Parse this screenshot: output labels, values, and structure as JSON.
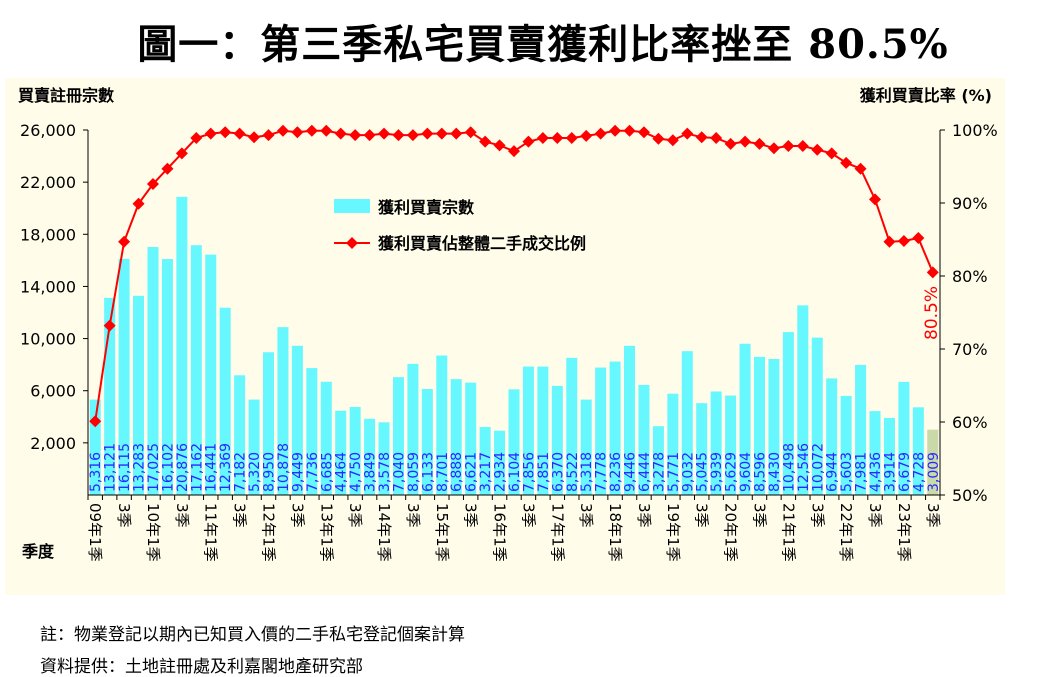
{
  "title": "圖一：第三季私宅買賣獲利比率挫至 80.5%",
  "notes": [
    "註：物業登記以期內已知買入價的二手私宅登記個案計算",
    "資料提供：土地註冊處及利嘉閣地產研究部"
  ],
  "chart_data": {
    "type": "bar+line",
    "ylabel_left": "買賣註冊宗數",
    "ylabel_right": "獲利買賣比率 (%)",
    "xlabel": "季度",
    "ylim_left": [
      -2000,
      26000
    ],
    "yticks_left": [
      "2,000",
      "6,000",
      "10,000",
      "14,000",
      "18,000",
      "22,000",
      "26,000"
    ],
    "ylim_right": [
      50,
      100
    ],
    "yticks_right": [
      "50%",
      "60%",
      "70%",
      "80%",
      "90%",
      "100%"
    ],
    "legend": {
      "position": "top-left",
      "bars": "獲利買賣宗數",
      "line": "獲利買賣佔整體二手成交比例"
    },
    "annotation": "80.5%",
    "categories": [
      "09年1季",
      "",
      "3季",
      "",
      "10年1季",
      "",
      "3季",
      "",
      "11年1季",
      "",
      "3季",
      "",
      "12年1季",
      "",
      "3季",
      "",
      "13年1季",
      "",
      "3季",
      "",
      "14年1季",
      "",
      "3季",
      "",
      "15年1季",
      "",
      "3季",
      "",
      "16年1季",
      "",
      "3季",
      "",
      "17年1季",
      "",
      "3季",
      "",
      "18年1季",
      "",
      "3季",
      "",
      "19年1季",
      "",
      "3季",
      "",
      "20年1季",
      "",
      "3季",
      "",
      "21年1季",
      "",
      "3季",
      "",
      "22年1季",
      "",
      "3季",
      "",
      "23年1季",
      "",
      "3季"
    ],
    "bar_values": [
      5316,
      13121,
      16115,
      13283,
      17025,
      16102,
      20876,
      17162,
      16441,
      12369,
      7182,
      5320,
      8950,
      10878,
      9449,
      7736,
      6685,
      4464,
      4750,
      3849,
      3578,
      7040,
      8059,
      6133,
      8701,
      6888,
      6621,
      3217,
      2934,
      6104,
      7856,
      7851,
      6370,
      8522,
      5318,
      7778,
      8236,
      9446,
      6444,
      3278,
      5771,
      9032,
      5045,
      5939,
      5629,
      9604,
      8596,
      8430,
      10498,
      12546,
      10072,
      6944,
      5603,
      7981,
      4436,
      3914,
      6679,
      4728,
      3009
    ],
    "bar_labels": [
      "5,316",
      "13,121",
      "16,115",
      "13,283",
      "17,025",
      "16,102",
      "20,876",
      "17,162",
      "16,441",
      "12,369",
      "7,182",
      "5,320",
      "8,950",
      "10,878",
      "9,449",
      "7,736",
      "6,685",
      "4,464",
      "4,750",
      "3,849",
      "3,578",
      "7,040",
      "8,059",
      "6,133",
      "8,701",
      "6,888",
      "6,621",
      "3,217",
      "2,934",
      "6,104",
      "7,856",
      "7,851",
      "6,370",
      "8,522",
      "5,318",
      "7,778",
      "8,236",
      "9,446",
      "6,444",
      "3,278",
      "5,771",
      "9,032",
      "5,045",
      "5,939",
      "5,629",
      "9,604",
      "8,596",
      "8,430",
      "10,498",
      "12,546",
      "10,072",
      "6,944",
      "5,603",
      "7,981",
      "4,436",
      "3,914",
      "6,679",
      "4,728",
      "3,009"
    ],
    "line_values": [
      60.1,
      73.2,
      84.7,
      89.9,
      92.6,
      94.7,
      96.8,
      98.9,
      99.5,
      99.7,
      99.5,
      99.0,
      99.3,
      99.9,
      99.7,
      99.9,
      99.9,
      99.5,
      99.3,
      99.3,
      99.5,
      99.3,
      99.3,
      99.5,
      99.5,
      99.5,
      99.7,
      98.4,
      97.9,
      97.1,
      98.4,
      98.9,
      98.9,
      98.9,
      99.2,
      99.5,
      99.9,
      99.9,
      99.7,
      98.8,
      98.6,
      99.5,
      99.0,
      98.9,
      98.1,
      98.4,
      98.1,
      97.5,
      97.8,
      97.8,
      97.3,
      96.8,
      95.5,
      94.7,
      90.5,
      84.7,
      84.8,
      85.2,
      80.5
    ],
    "colors": {
      "bar": "#66f7ff",
      "bar_last": "#c9d9a8",
      "line": "#ff0000",
      "bar_label": "#2a2aff",
      "background": "#fffdea"
    }
  }
}
